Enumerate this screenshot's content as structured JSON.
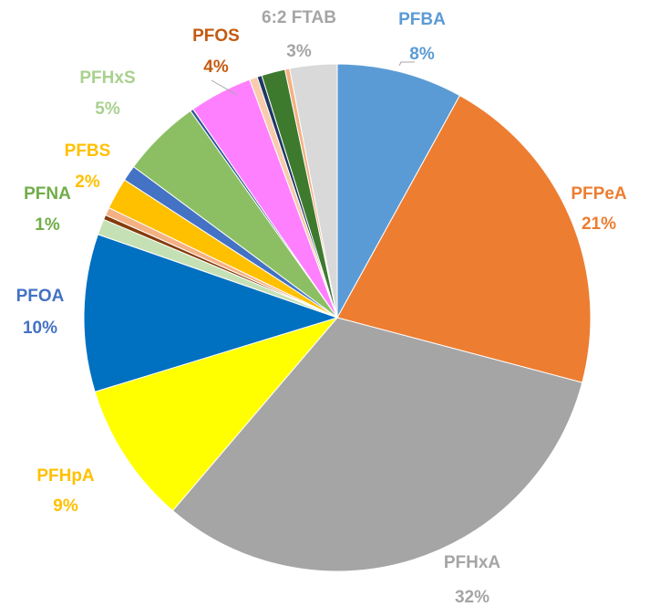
{
  "chart_data": {
    "type": "pie",
    "categories": [
      "PFBA",
      "PFPeA",
      "PFHxA",
      "PFHpA",
      "PFOA",
      "PFNA",
      null,
      null,
      "PFBS",
      null,
      "PFHxS",
      null,
      "PFOS",
      null,
      null,
      null,
      null,
      "6:2 FTAB"
    ],
    "values": [
      8,
      21,
      32,
      9,
      10,
      1,
      0.3,
      0.5,
      2,
      1,
      5,
      0.2,
      4,
      0.5,
      0.3,
      1.5,
      0.3,
      3
    ],
    "value_labels": [
      "8%",
      "21%",
      "32%",
      "9%",
      "10%",
      "1%",
      null,
      null,
      "2%",
      null,
      "5%",
      null,
      "4%",
      null,
      null,
      null,
      null,
      "3%"
    ],
    "colors": [
      "#5b9bd5",
      "#ed7d31",
      "#a5a5a5",
      "#ffff00",
      "#0070c0",
      "#c5e0b4",
      "#843c0c",
      "#f4b183",
      "#ffc000",
      "#4472c4",
      "#8cbf63",
      "#2f5597",
      "#ff80ff",
      "#f8cbad",
      "#1f3864",
      "#3e7a2e",
      "#f4b183",
      "#d9d9d9"
    ]
  }
}
